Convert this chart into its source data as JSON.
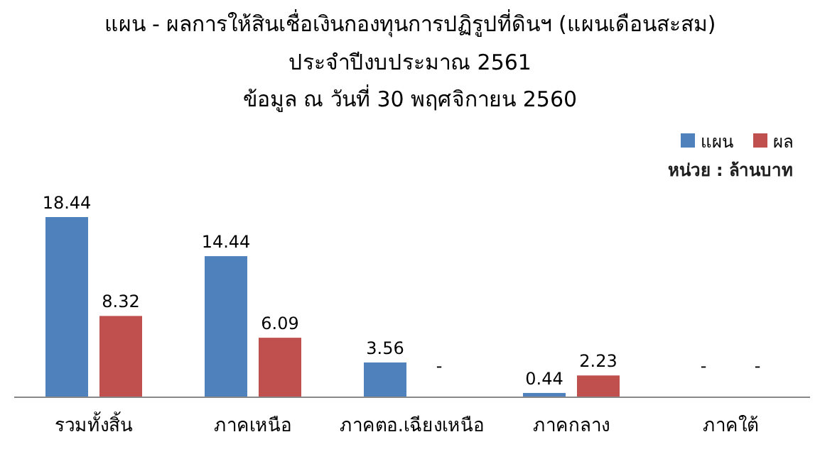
{
  "chart_data": {
    "type": "bar",
    "title": "แผน - ผลการให้สินเชื่อเงินกองทุนการปฏิรูปที่ดินฯ  (แผนเดือนสะสม)",
    "subtitle": "ประจำปีงบประมาณ  2561\nข้อมูล ณ วันที่ 30 พฤศจิกายน 2560",
    "annotations": [
      "หน่วย : ล้านบาท"
    ],
    "categories": [
      "รวมทั้งสิ้น",
      "ภาคเหนือ",
      "ภาคตอ.เฉียงเหนือ",
      "ภาคกลาง",
      "ภาคใต้"
    ],
    "series": [
      {
        "name": "แผน",
        "color": "#4f81bd",
        "values": [
          18.44,
          14.44,
          3.56,
          0.44,
          null
        ],
        "value_labels": [
          "18.44",
          "14.44",
          "3.56",
          "0.44",
          "-"
        ]
      },
      {
        "name": "ผล",
        "color": "#c0504d",
        "values": [
          8.32,
          6.09,
          null,
          2.23,
          null
        ],
        "value_labels": [
          "8.32",
          "6.09",
          "-",
          "2.23",
          "-"
        ]
      }
    ],
    "legend": "top right"
  }
}
